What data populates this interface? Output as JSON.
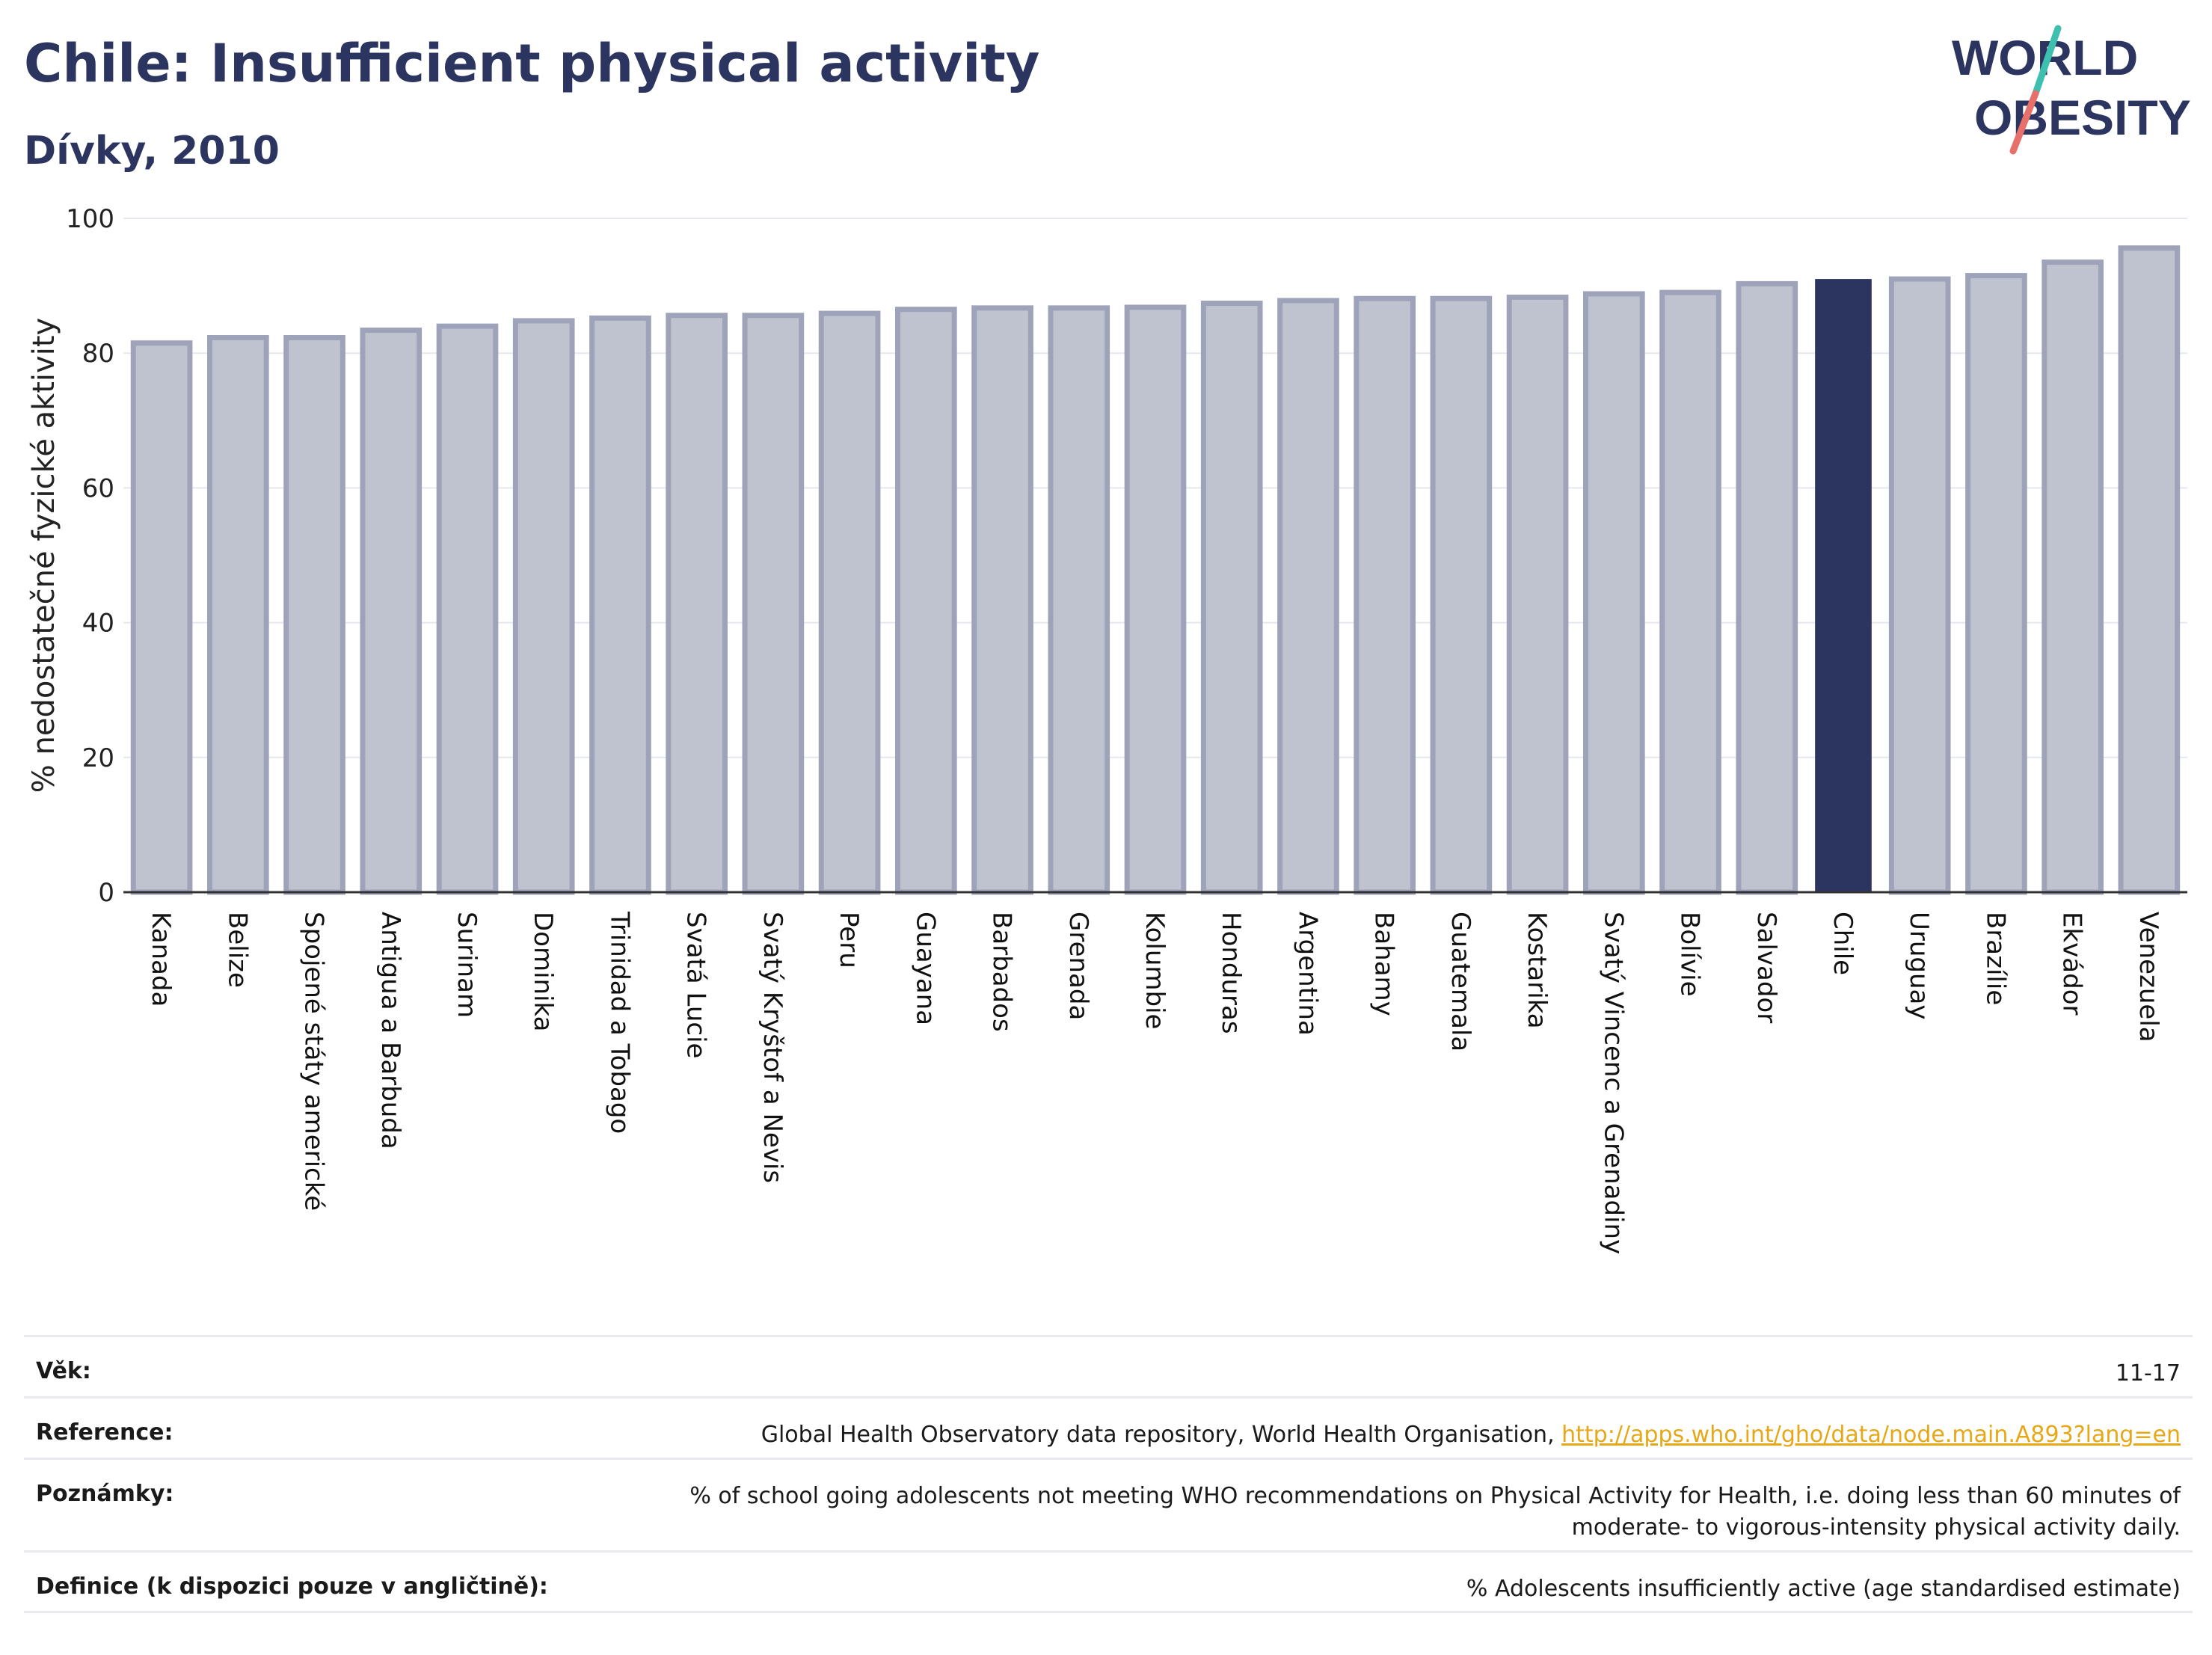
{
  "header": {
    "title": "Chile: Insufficient physical activity",
    "subtitle": "Dívky, 2010"
  },
  "logo": {
    "line1": "WORLD",
    "line2": "OBESITY"
  },
  "chart_data": {
    "type": "bar",
    "ylabel": "% nedostatečné fyzické aktivity",
    "ylim": [
      0,
      100
    ],
    "yticks": [
      0,
      20,
      40,
      60,
      80,
      100
    ],
    "grid": true,
    "highlight": "Chile",
    "colors": {
      "bar": "#bfc3d0",
      "bar_border": "#9ea3ba",
      "highlight": "#2b3560",
      "grid": "#e6e8ee",
      "axis": "#333333"
    },
    "categories": [
      "Kanada",
      "Belize",
      "Spojené státy americké",
      "Antigua a Barbuda",
      "Surinam",
      "Dominika",
      "Trinidad a Tobago",
      "Svatá Lucie",
      "Svatý Kryštof a Nevis",
      "Peru",
      "Guayana",
      "Barbados",
      "Grenada",
      "Kolumbie",
      "Honduras",
      "Argentina",
      "Bahamy",
      "Guatemala",
      "Kostarika",
      "Svatý Vincenc a Grenadiny",
      "Bolívie",
      "Salvador",
      "Chile",
      "Uruguay",
      "Brazílie",
      "Ekvádor",
      "Venezuela"
    ],
    "values": [
      81.5,
      82.3,
      82.3,
      83.4,
      84.0,
      84.8,
      85.2,
      85.6,
      85.6,
      85.9,
      86.5,
      86.7,
      86.7,
      86.8,
      87.4,
      87.8,
      88.1,
      88.1,
      88.3,
      88.8,
      89.0,
      90.3,
      91.0,
      91.0,
      91.5,
      93.5,
      95.6
    ]
  },
  "details": {
    "age_label": "Věk:",
    "age_value": "11-17",
    "reference_label": "Reference:",
    "reference_text": "Global Health Observatory data repository, World Health Organisation, ",
    "reference_link": "http://apps.who.int/gho/data/node.main.A893?lang=en",
    "notes_label": "Poznámky:",
    "notes_text": "% of school going adolescents not meeting WHO recommendations on Physical Activity for Health, i.e. doing less than 60 minutes of moderate- to vigorous-intensity physical activity daily.",
    "definition_label": "Definice (k dispozici pouze v angličtině):",
    "definition_text": "% Adolescents insufficiently active (age standardised estimate)"
  }
}
